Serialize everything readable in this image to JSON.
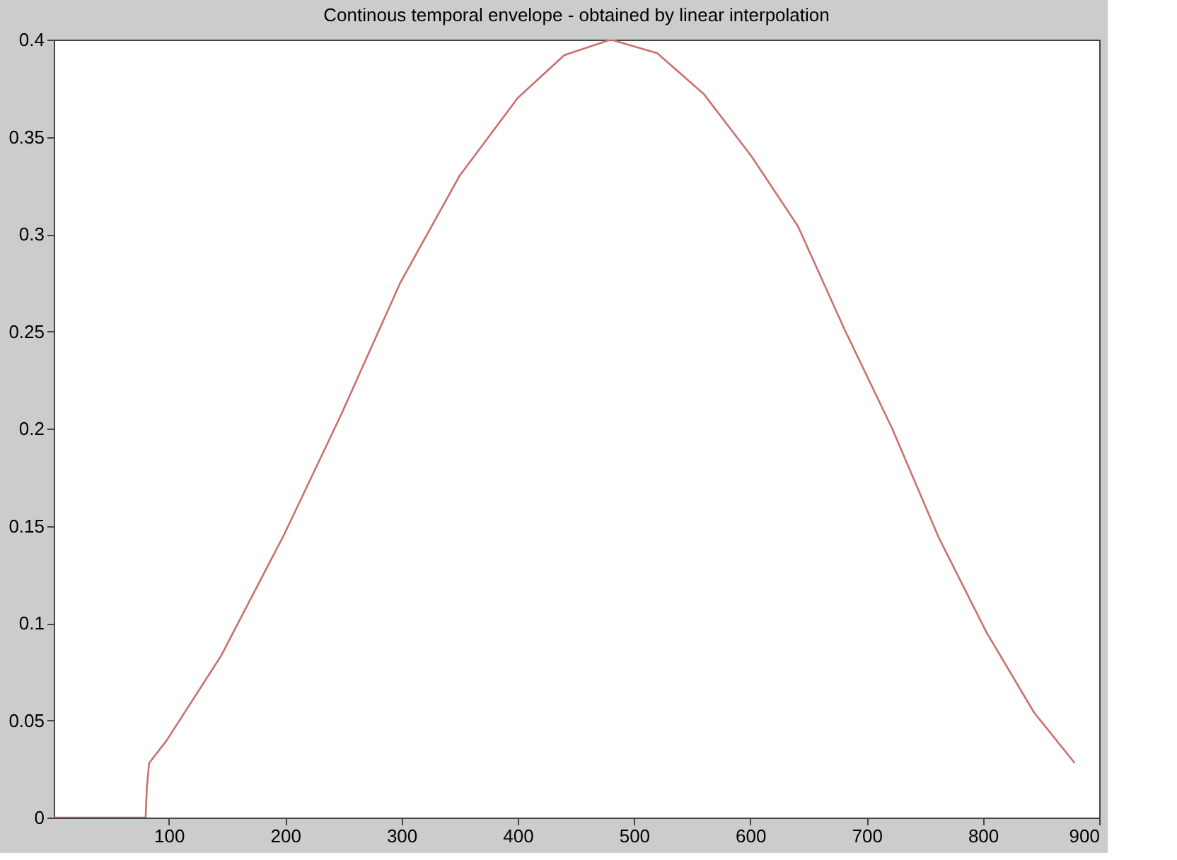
{
  "chart_data": {
    "type": "line",
    "title": "Continous temporal envelope - obtained by linear interpolation",
    "x": [
      1,
      80,
      81,
      83,
      98,
      145,
      199.5,
      248,
      299,
      350,
      400,
      440,
      480,
      520,
      560,
      601,
      641,
      681,
      722,
      762,
      803,
      844,
      879
    ],
    "series": [
      {
        "color": "#cc6f6f",
        "values": [
          0,
          0,
          0.015,
          0.028,
          0.0396,
          0.0833,
          0.146,
          0.207,
          0.275,
          0.33,
          0.37,
          0.392,
          0.4,
          0.393,
          0.372,
          0.34,
          0.304,
          0.251,
          0.2,
          0.144,
          0.0953,
          0.054,
          0.028
        ]
      }
    ],
    "xlim": [
      1,
      900
    ],
    "xticks": [
      100,
      200,
      300,
      400,
      500,
      600,
      700,
      800,
      900
    ],
    "ylim": [
      0,
      0.4
    ],
    "yticks": [
      0,
      0.05,
      0.1,
      0.15,
      0.2,
      0.25,
      0.3,
      0.35,
      0.4
    ],
    "grid": false,
    "marker": "none",
    "line_style": "solid"
  }
}
